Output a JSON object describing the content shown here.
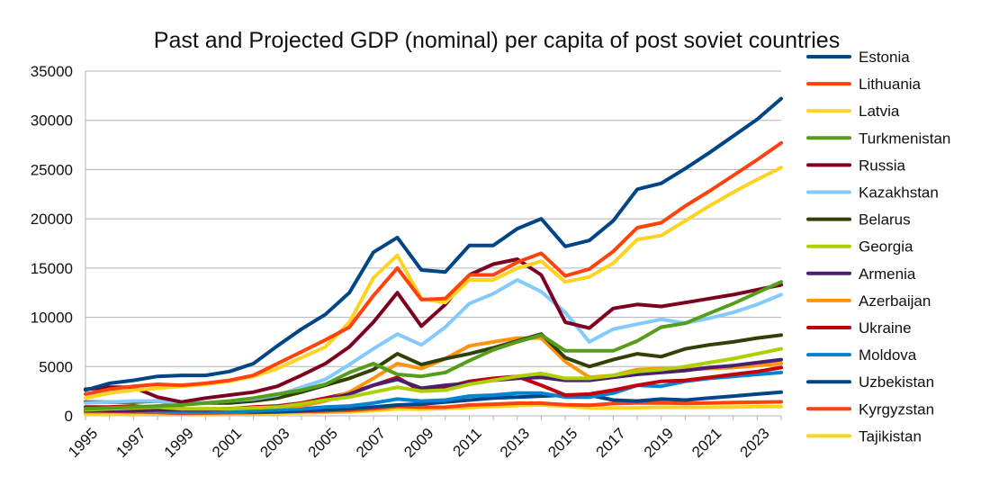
{
  "chart_data": {
    "type": "line",
    "title": "Past and Projected GDP (nominal) per capita of post soviet countries",
    "xlabel": "",
    "ylabel": "",
    "x": [
      1995,
      1996,
      1997,
      1998,
      1999,
      2000,
      2001,
      2002,
      2003,
      2004,
      2005,
      2006,
      2007,
      2008,
      2009,
      2010,
      2011,
      2012,
      2013,
      2014,
      2015,
      2016,
      2017,
      2018,
      2019,
      2020,
      2021,
      2022,
      2023,
      2024
    ],
    "x_tick_labels": [
      "1995",
      "1997",
      "1999",
      "2001",
      "2003",
      "2005",
      "2007",
      "2009",
      "2011",
      "2013",
      "2015",
      "2017",
      "2019",
      "2021",
      "2023"
    ],
    "x_tick_values": [
      1995,
      1997,
      1999,
      2001,
      2003,
      2005,
      2007,
      2009,
      2011,
      2013,
      2015,
      2017,
      2019,
      2021,
      2023
    ],
    "ylim": [
      0,
      35000
    ],
    "y_ticks": [
      0,
      5000,
      10000,
      15000,
      20000,
      25000,
      30000,
      35000
    ],
    "grid": "horizontal",
    "legend_position": "right",
    "series": [
      {
        "name": "Estonia",
        "color": "#004586",
        "values": [
          2600,
          3300,
          3600,
          4000,
          4100,
          4100,
          4500,
          5300,
          7100,
          8800,
          10300,
          12500,
          16600,
          18100,
          14800,
          14600,
          17300,
          17300,
          19000,
          20000,
          17200,
          17800,
          19800,
          23000,
          23600,
          25100,
          26700,
          28400,
          30100,
          32200
        ]
      },
      {
        "name": "Lithuania",
        "color": "#ff420e",
        "values": [
          2200,
          2700,
          3000,
          3200,
          3100,
          3300,
          3600,
          4100,
          5300,
          6500,
          7700,
          9000,
          12200,
          15000,
          11800,
          11900,
          14300,
          14300,
          15600,
          16500,
          14200,
          14900,
          16700,
          19100,
          19600,
          21300,
          22800,
          24400,
          26000,
          27700
        ]
      },
      {
        "name": "Latvia",
        "color": "#ffd320",
        "values": [
          1800,
          2300,
          2600,
          2800,
          3000,
          3200,
          3500,
          4000,
          4800,
          5900,
          7000,
          9500,
          14000,
          16300,
          11900,
          11500,
          13800,
          13800,
          15000,
          15700,
          13600,
          14100,
          15500,
          17900,
          18300,
          19800,
          21300,
          22700,
          24000,
          25200
        ]
      },
      {
        "name": "Turkmenistan",
        "color": "#579d1c",
        "values": [
          700,
          800,
          900,
          1000,
          1100,
          1300,
          1500,
          1800,
          2200,
          2600,
          3200,
          4400,
          5300,
          4200,
          4000,
          4400,
          5600,
          6700,
          7500,
          8200,
          6600,
          6600,
          6600,
          7600,
          9000,
          9400,
          10400,
          11400,
          12500,
          13600
        ]
      },
      {
        "name": "Russia",
        "color": "#7e0021",
        "values": [
          2700,
          2900,
          2900,
          1900,
          1400,
          1800,
          2100,
          2400,
          3000,
          4100,
          5300,
          7000,
          9500,
          12500,
          9100,
          11300,
          14300,
          15400,
          15900,
          14300,
          9500,
          8900,
          10900,
          11300,
          11100,
          11500,
          11900,
          12300,
          12800,
          13300
        ]
      },
      {
        "name": "Kazakhstan",
        "color": "#83caff",
        "values": [
          1300,
          1400,
          1500,
          1500,
          1300,
          1300,
          1500,
          1700,
          2100,
          2900,
          3700,
          5200,
          6800,
          8300,
          7200,
          9000,
          11400,
          12400,
          13800,
          12600,
          10500,
          7500,
          8800,
          9300,
          9800,
          9400,
          9900,
          10500,
          11300,
          12300
        ]
      },
      {
        "name": "Belarus",
        "color": "#314004",
        "values": [
          1400,
          1400,
          1400,
          1500,
          1200,
          1300,
          1300,
          1500,
          1800,
          2400,
          3100,
          3800,
          4700,
          6300,
          5200,
          5800,
          6300,
          6900,
          7600,
          8300,
          5900,
          5000,
          5700,
          6300,
          6000,
          6800,
          7200,
          7500,
          7900,
          8200
        ]
      },
      {
        "name": "Georgia",
        "color": "#aecf00",
        "values": [
          600,
          700,
          800,
          900,
          700,
          700,
          700,
          800,
          900,
          1200,
          1600,
          1900,
          2400,
          2900,
          2500,
          2600,
          3200,
          3600,
          4000,
          4300,
          3800,
          3800,
          4100,
          4500,
          4700,
          5000,
          5400,
          5800,
          6300,
          6800
        ]
      },
      {
        "name": "Armenia",
        "color": "#4b1f6f",
        "values": [
          500,
          500,
          500,
          600,
          600,
          600,
          700,
          800,
          900,
          1200,
          1600,
          2200,
          3100,
          3700,
          2800,
          3100,
          3300,
          3600,
          3800,
          3900,
          3600,
          3600,
          3900,
          4200,
          4400,
          4600,
          4900,
          5100,
          5400,
          5700
        ]
      },
      {
        "name": "Azerbaijan",
        "color": "#ff950e",
        "values": [
          400,
          500,
          500,
          600,
          600,
          700,
          700,
          800,
          900,
          1000,
          1500,
          2400,
          3800,
          5300,
          4800,
          5800,
          7100,
          7500,
          7900,
          7900,
          5500,
          3900,
          4100,
          4700,
          4800,
          4700,
          4800,
          4900,
          5100,
          5300
        ]
      },
      {
        "name": "Ukraine",
        "color": "#c5000b",
        "values": [
          900,
          900,
          1000,
          800,
          700,
          600,
          700,
          900,
          1000,
          1300,
          1800,
          2300,
          3100,
          3900,
          2500,
          2900,
          3500,
          3800,
          4000,
          3100,
          2100,
          2200,
          2600,
          3100,
          3500,
          3600,
          3900,
          4200,
          4500,
          4900
        ]
      },
      {
        "name": "Moldova",
        "color": "#0084d1",
        "values": [
          500,
          500,
          500,
          500,
          400,
          400,
          400,
          500,
          600,
          700,
          900,
          1000,
          1300,
          1700,
          1500,
          1600,
          2000,
          2100,
          2300,
          2300,
          1900,
          1900,
          2300,
          3100,
          3000,
          3500,
          3800,
          4000,
          4200,
          4400
        ]
      },
      {
        "name": "Uzbekistan",
        "color": "#004586",
        "values": [
          600,
          600,
          650,
          650,
          700,
          600,
          500,
          400,
          400,
          500,
          600,
          700,
          900,
          1100,
          1200,
          1400,
          1600,
          1800,
          1900,
          2000,
          2100,
          2100,
          1600,
          1500,
          1700,
          1600,
          1800,
          2000,
          2200,
          2400
        ]
      },
      {
        "name": "Kyrgyzstan",
        "color": "#ff420e",
        "values": [
          400,
          450,
          400,
          350,
          260,
          280,
          310,
          330,
          380,
          430,
          480,
          550,
          720,
          960,
          870,
          880,
          1100,
          1180,
          1280,
          1280,
          1120,
          1080,
          1240,
          1300,
          1320,
          1260,
          1300,
          1340,
          1380,
          1420
        ]
      },
      {
        "name": "Tajikistan",
        "color": "#ffd320",
        "values": [
          160,
          150,
          160,
          200,
          180,
          140,
          170,
          190,
          240,
          310,
          340,
          400,
          520,
          710,
          670,
          740,
          830,
          950,
          1040,
          1110,
          970,
          800,
          800,
          820,
          880,
          860,
          880,
          900,
          920,
          940
        ]
      }
    ]
  }
}
